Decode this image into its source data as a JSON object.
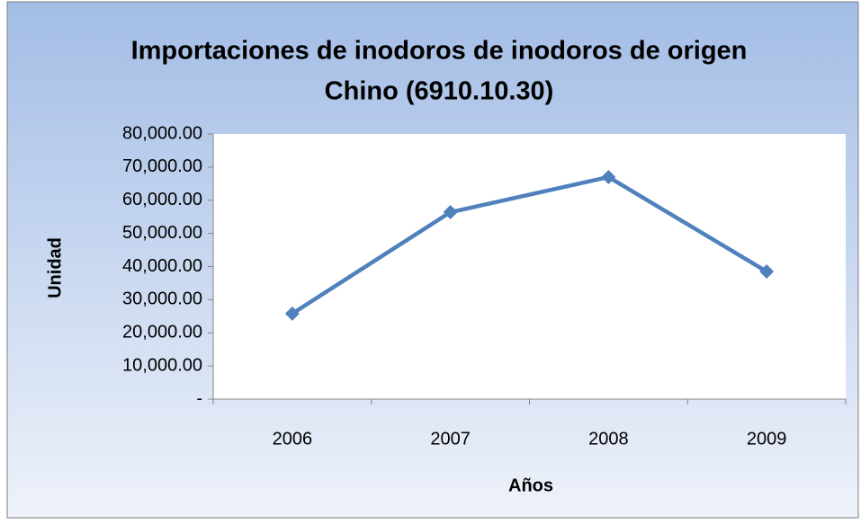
{
  "chart_data": {
    "type": "line",
    "title": [
      "Importaciones de inodoros  de inodoros de origen",
      "Chino (6910.10.30)"
    ],
    "x_label": "Años",
    "y_label": "Unidad",
    "categories": [
      "2006",
      "2007",
      "2008",
      "2009"
    ],
    "series": [
      {
        "name": "Unidad",
        "color": "#4f81bd",
        "values": [
          25800,
          56400,
          67000,
          38500
        ]
      }
    ],
    "ylim": [
      0,
      80000
    ],
    "yticks": [
      {
        "value": 0,
        "label": "-"
      },
      {
        "value": 10000,
        "label": "10,000.00"
      },
      {
        "value": 20000,
        "label": "20,000.00"
      },
      {
        "value": 30000,
        "label": "30,000.00"
      },
      {
        "value": 40000,
        "label": "40,000.00"
      },
      {
        "value": 50000,
        "label": "50,000.00"
      },
      {
        "value": 60000,
        "label": "60,000.00"
      },
      {
        "value": 70000,
        "label": "70,000.00"
      },
      {
        "value": 80000,
        "label": "80,000.00"
      }
    ],
    "grid": false
  }
}
